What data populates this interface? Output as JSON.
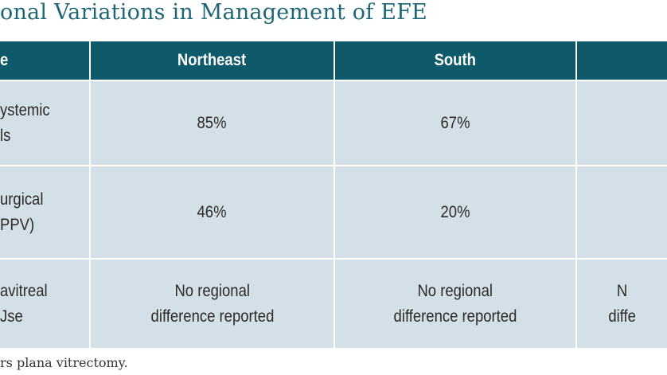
{
  "title": "onal Variations in Management of EFE",
  "table": {
    "header": [
      "e",
      "Northeast",
      "South"
    ],
    "rows": [
      [
        [
          "ystemic",
          "ls"
        ],
        [
          "85%"
        ],
        [
          "67%"
        ]
      ],
      [
        [
          "urgical",
          "PPV)"
        ],
        [
          "46%"
        ],
        [
          "20%"
        ]
      ],
      [
        [
          "avitreal",
          "Jse"
        ],
        [
          "No regional",
          "difference reported"
        ],
        [
          "No regional",
          "difference reported"
        ],
        [
          "N",
          "diffe"
        ]
      ]
    ]
  },
  "footnote": "rs plana vitrectomy."
}
